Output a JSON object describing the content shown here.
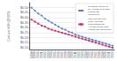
{
  "chart_data": {
    "type": "line",
    "x": [
      1998,
      1999,
      2000,
      2001,
      2002,
      2003,
      2004,
      2005,
      2006,
      2007,
      2008,
      2009,
      2010,
      2011,
      2012,
      2013,
      2014,
      2015,
      2016,
      2017,
      2018,
      2019,
      2020,
      2021,
      2022
    ],
    "xlim": [
      1997.5,
      2022.5
    ],
    "xticks": [
      1998,
      1999,
      2000,
      2001,
      2002,
      2003,
      2004,
      2005,
      2006,
      2007,
      2008,
      2009,
      2010,
      2011,
      2012,
      2013,
      2014,
      2015,
      2016,
      2017,
      2018,
      2019,
      2020,
      2021,
      2022
    ],
    "ylabel": "Cost per kWh (2020$)",
    "ylim": [
      0.08,
      0.55
    ],
    "yticks": [
      {
        "value": 0.1,
        "label": "$0.10"
      },
      {
        "value": 0.15,
        "label": "$0.15"
      },
      {
        "value": 0.2,
        "label": "$0.20"
      },
      {
        "value": 0.25,
        "label": "$0.25"
      },
      {
        "value": 0.3,
        "label": "$0.30"
      },
      {
        "value": 0.35,
        "label": "$0.35"
      },
      {
        "value": 0.4,
        "label": "$0.40"
      },
      {
        "value": 0.45,
        "label": "$0.45"
      },
      {
        "value": 0.5,
        "label": "$0.50"
      }
    ],
    "grid": true,
    "legend": "upper right",
    "series": [
      {
        "name": "Crystalline Silicon at\nan Average Price with\nFederal Tax\nIncentive(s)",
        "color": "#5b7fcc",
        "marker": "circle",
        "values": [
          0.5,
          0.47,
          0.44,
          0.42,
          0.39,
          0.37,
          0.35,
          0.33,
          0.31,
          0.29,
          0.28,
          0.26,
          0.25,
          0.23,
          0.22,
          0.21,
          0.2,
          0.19,
          0.18,
          0.17,
          0.16,
          0.15,
          0.14,
          0.13,
          0.12
        ]
      },
      {
        "name": "Thin Film and Low-\nConc. Tracking\nConcentrating at\nAverage Prices, with\nFederal Tax Incentive(s)",
        "color": "#cc3366",
        "marker": "square",
        "values": [
          0.38,
          0.36,
          0.34,
          0.32,
          0.31,
          0.29,
          0.28,
          0.27,
          0.26,
          0.25,
          0.24,
          0.23,
          0.22,
          0.21,
          0.2,
          0.19,
          0.18,
          0.17,
          0.16,
          0.15,
          0.14,
          0.13,
          0.12,
          0.11,
          0.1
        ]
      }
    ]
  }
}
